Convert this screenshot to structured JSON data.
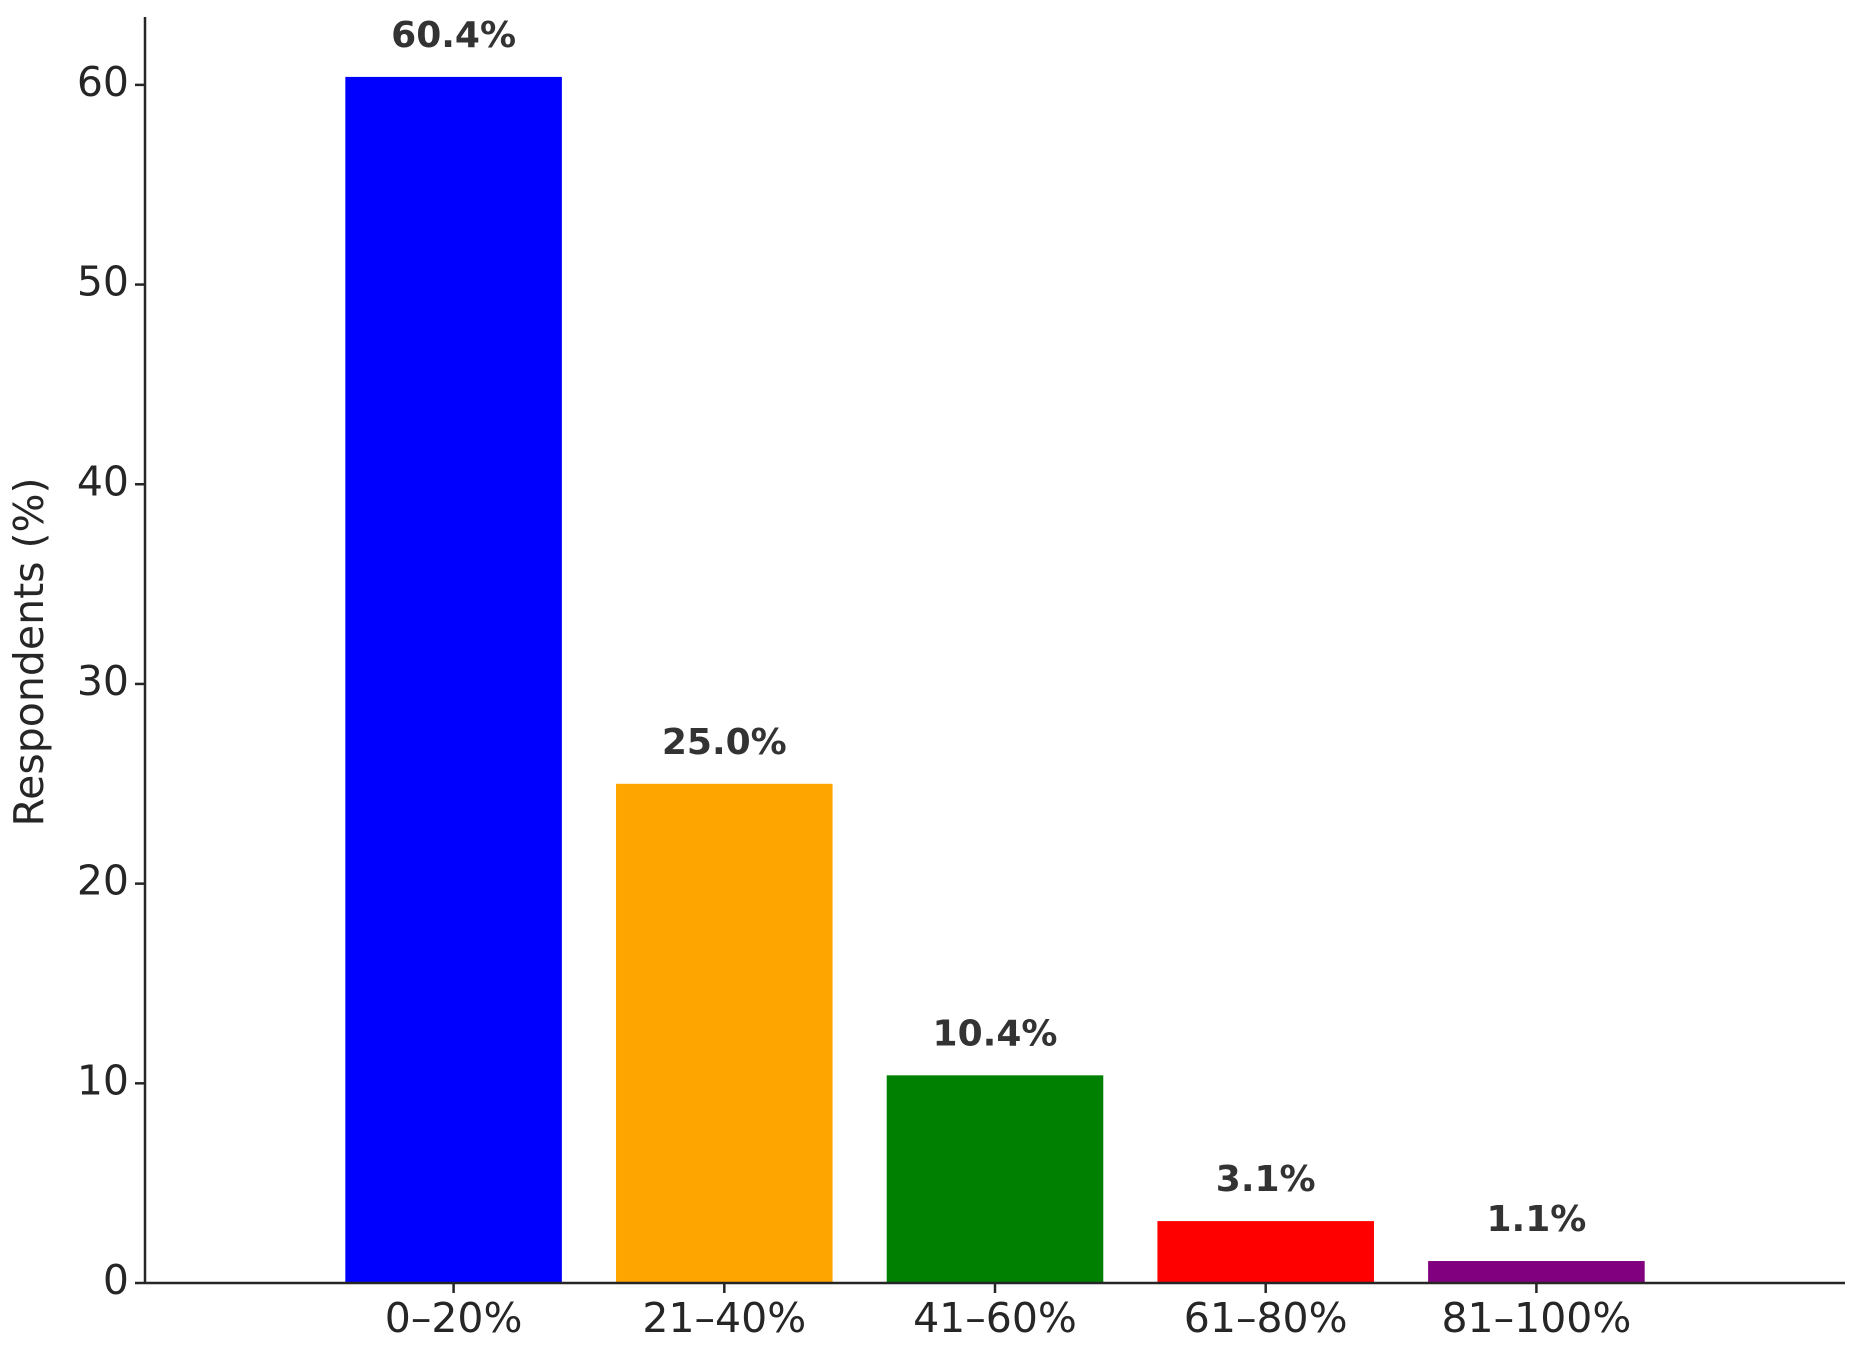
{
  "chart_data": {
    "type": "bar",
    "y_label": "Respondents (%)",
    "categories": [
      "0–20%",
      "21–40%",
      "41–60%",
      "61–80%",
      "81–100%"
    ],
    "values": [
      60.4,
      25.0,
      10.4,
      3.1,
      1.1
    ],
    "value_labels": [
      "60.4%",
      "25.0%",
      "10.4%",
      "3.1%",
      "1.1%"
    ],
    "colors": [
      "#0000ff",
      "#ffa500",
      "#008000",
      "#ff0000",
      "#800080"
    ],
    "ylim": [
      0,
      63.4
    ],
    "yticks": [
      0,
      10,
      20,
      30,
      40,
      50,
      60
    ],
    "grid": false
  }
}
